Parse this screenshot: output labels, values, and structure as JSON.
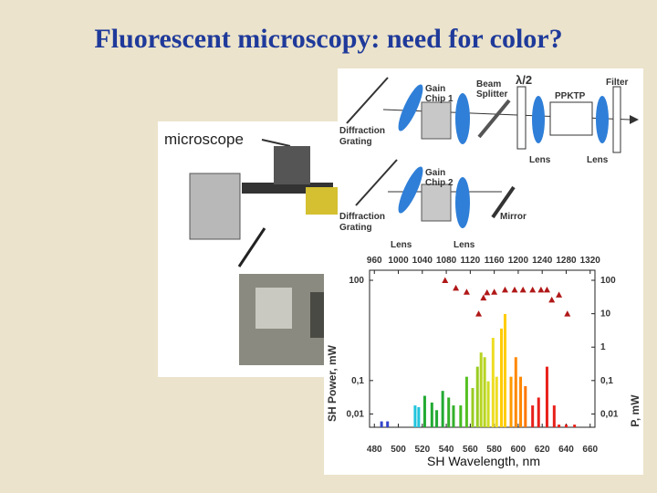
{
  "title": "Fluorescent microscopy: need for color?",
  "photo": {
    "label": "microscope"
  },
  "diagram": {
    "gain_chip_1": [
      "Gain",
      "Chip 1"
    ],
    "beam_splitter": [
      "Beam",
      "Splitter"
    ],
    "lambda_half": "λ/2",
    "ppktp": "PPKTP",
    "filter": "Filter",
    "grating_1": [
      "Diffraction",
      "Grating"
    ],
    "lens_1": "Lens",
    "lens_2": "Lens",
    "gain_chip_2": [
      "Gain",
      "Chip 2"
    ],
    "mirror": "Mirror",
    "grating_2": [
      "Diffraction",
      "Grating"
    ],
    "lens_3": "Lens",
    "lens_4": "Lens"
  },
  "chart_data": {
    "type": "bar",
    "x_label": "SH Wavelength, nm",
    "y_label": "SH Power, mW",
    "y2_label": "P, mW",
    "log_scale": true,
    "xlim": [
      476,
      664
    ],
    "xticks": [
      480,
      500,
      520,
      540,
      560,
      580,
      600,
      620,
      640,
      660
    ],
    "x2lim": [
      952,
      1328
    ],
    "x2ticks": [
      960,
      1000,
      1040,
      1080,
      1120,
      1160,
      1200,
      1240,
      1280,
      1320
    ],
    "ylim": [
      0.004,
      200
    ],
    "yticks": [
      {
        "value": 0.01,
        "label": "0,01"
      },
      {
        "value": 0.1,
        "label": "0,1"
      },
      100
    ],
    "y2lim": [
      0.004,
      200
    ],
    "y2ticks": [
      {
        "value": 0.01,
        "label": "0,01"
      },
      {
        "value": 0.1,
        "label": "0,1"
      },
      1,
      10,
      100
    ],
    "bars": {
      "x": [
        486,
        491,
        514,
        517,
        522,
        528,
        532,
        537,
        542,
        546,
        552,
        557,
        562,
        566,
        569,
        572,
        575,
        579,
        582,
        586,
        589,
        594,
        598,
        602,
        606,
        612,
        617,
        624,
        630,
        634,
        640,
        647
      ],
      "values": [
        0.006,
        0.006,
        0.018,
        0.016,
        0.035,
        0.022,
        0.013,
        0.049,
        0.031,
        0.018,
        0.018,
        0.13,
        0.06,
        0.26,
        0.69,
        0.5,
        0.095,
        1.9,
        0.13,
        3.6,
        9.8,
        0.13,
        0.5,
        0.13,
        0.068,
        0.018,
        0.031,
        0.26,
        0.018,
        0.0048,
        0.0048,
        0.0048
      ],
      "colors": [
        "#3344cc",
        "#3344cc",
        "#22c4dd",
        "#22c4dd",
        "#22aa33",
        "#22aa33",
        "#22aa33",
        "#22aa33",
        "#33b02a",
        "#33b02a",
        "#44bb22",
        "#55c022",
        "#99cc22",
        "#99cc22",
        "#b8d422",
        "#b8d422",
        "#ccdd22",
        "#eedd22",
        "#eedd22",
        "#ffcc00",
        "#ffcc00",
        "#ff9900",
        "#ff8800",
        "#ff8800",
        "#ff7700",
        "#e8201a",
        "#e8201a",
        "#e8201a",
        "#e8201a",
        "#e8201a",
        "#e8201a",
        "#e8201a"
      ]
    },
    "points": {
      "color": "#b01818",
      "axis": "y2",
      "x": [
        539,
        548,
        557,
        567,
        571,
        574,
        580,
        589,
        597,
        604,
        612,
        619,
        624,
        628,
        634,
        641
      ],
      "values": [
        100,
        59,
        45,
        10,
        30,
        43,
        45,
        52,
        52,
        52,
        52,
        52,
        52,
        26,
        37,
        10
      ]
    }
  }
}
